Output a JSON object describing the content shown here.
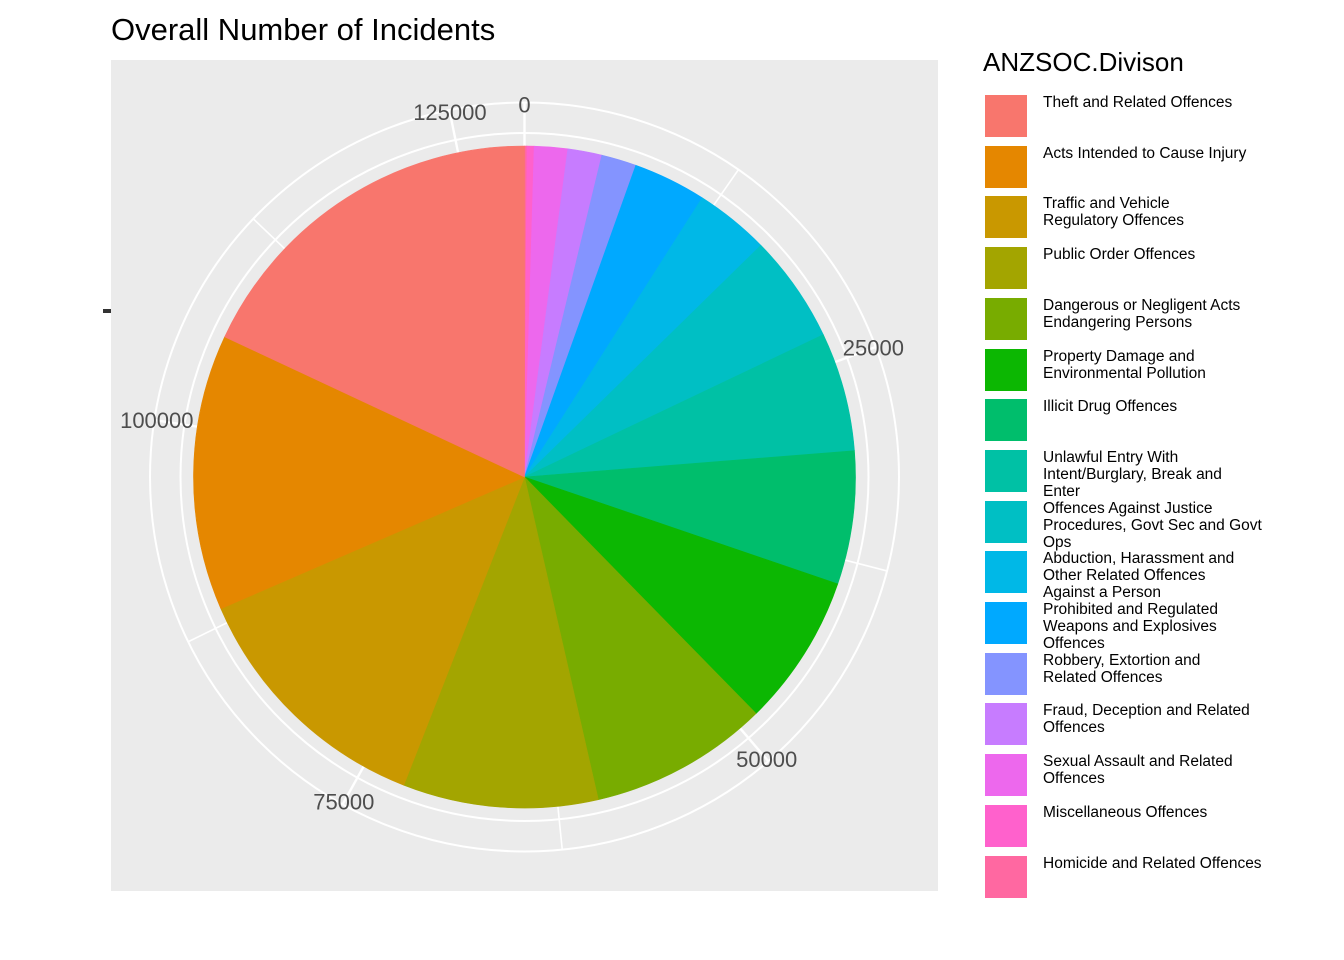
{
  "chart": {
    "title": "Overall Number of Incidents",
    "panel_background": "#EBEBEB",
    "grid_color": "#FFFFFF",
    "axis_text_color": "#4D4D4D",
    "axis_tick_color": "#333333"
  },
  "legend": {
    "title": "ANZSOC.Divison"
  },
  "chart_data": {
    "type": "pie",
    "title": "Overall Number of Incidents",
    "legend_title": "ANZSOC.Divison",
    "legend_position": "right",
    "direction": "clockwise-from-top, stacked in reverse of legend order (Homicide first after 0, Theft ends at 0)",
    "total": 129150,
    "theta_axis": {
      "tick_values": [
        0,
        25000,
        50000,
        75000,
        100000,
        125000
      ],
      "tick_labels": [
        "0",
        "25000",
        "50000",
        "75000",
        "100000",
        "125000"
      ],
      "minor_tick_values": [
        12500,
        37500,
        62500,
        87500,
        112500
      ],
      "range": [
        0,
        129150
      ],
      "grid": "on"
    },
    "categories": [
      {
        "label": "Theft and Related Offences",
        "label_lines": [
          "Theft and Related Offences"
        ],
        "value": 23300,
        "color": "#F8766D"
      },
      {
        "label": "Acts Intended to Cause Injury",
        "label_lines": [
          "Acts Intended to Cause Injury"
        ],
        "value": 17400,
        "color": "#E58700"
      },
      {
        "label": "Traffic and Vehicle Regulatory Offences",
        "label_lines": [
          "Traffic and Vehicle",
          "Regulatory Offences"
        ],
        "value": 16200,
        "color": "#C99800"
      },
      {
        "label": "Public Order Offences",
        "label_lines": [
          "Public Order Offences"
        ],
        "value": 12300,
        "color": "#A3A500"
      },
      {
        "label": "Dangerous or Negligent Acts Endangering Persons",
        "label_lines": [
          "Dangerous or Negligent Acts",
          "Endangering Persons"
        ],
        "value": 11300,
        "color": "#78AC00"
      },
      {
        "label": "Property Damage and Environmental Pollution",
        "label_lines": [
          "Property Damage and",
          "Environmental Pollution"
        ],
        "value": 9600,
        "color": "#0CB702"
      },
      {
        "label": "Illicit Drug Offences",
        "label_lines": [
          "Illicit Drug Offences"
        ],
        "value": 8400,
        "color": "#00BE6C"
      },
      {
        "label": "Unlawful Entry With Intent/Burglary, Break and Enter",
        "label_lines": [
          "Unlawful Entry With",
          "Intent/Burglary, Break and",
          "Enter"
        ],
        "value": 7500,
        "color": "#00C1A5"
      },
      {
        "label": "Offences Against Justice Procedures, Govt Sec and Govt Ops",
        "label_lines": [
          "Offences Against Justice",
          "Procedures, Govt Sec and Govt",
          "Ops"
        ],
        "value": 6800,
        "color": "#00BFC4"
      },
      {
        "label": "Abduction, Harassment and Other Related Offences Against a Person",
        "label_lines": [
          "Abduction, Harassment and",
          "Other Related Offences",
          "Against a Person"
        ],
        "value": 4700,
        "color": "#00B8E7"
      },
      {
        "label": "Prohibited and Regulated Weapons and Explosives Offences",
        "label_lines": [
          "Prohibited and Regulated",
          "Weapons and Explosives",
          "Offences"
        ],
        "value": 4600,
        "color": "#00A9FF"
      },
      {
        "label": "Robbery, Extortion and Related Offences",
        "label_lines": [
          "Robbery, Extortion and",
          "Related Offences"
        ],
        "value": 2200,
        "color": "#8494FF"
      },
      {
        "label": "Fraud, Deception and Related Offences",
        "label_lines": [
          "Fraud, Deception and Related",
          "Offences"
        ],
        "value": 2150,
        "color": "#C77CFF"
      },
      {
        "label": "Sexual Assault and Related Offences",
        "label_lines": [
          "Sexual Assault and Related",
          "Offences"
        ],
        "value": 2100,
        "color": "#ED68ED"
      },
      {
        "label": "Miscellaneous Offences",
        "label_lines": [
          "Miscellaneous Offences"
        ],
        "value": 450,
        "color": "#FF61CC"
      },
      {
        "label": "Homicide and Related Offences",
        "label_lines": [
          "Homicide and Related Offences"
        ],
        "value": 150,
        "color": "#FF68A1"
      }
    ]
  }
}
